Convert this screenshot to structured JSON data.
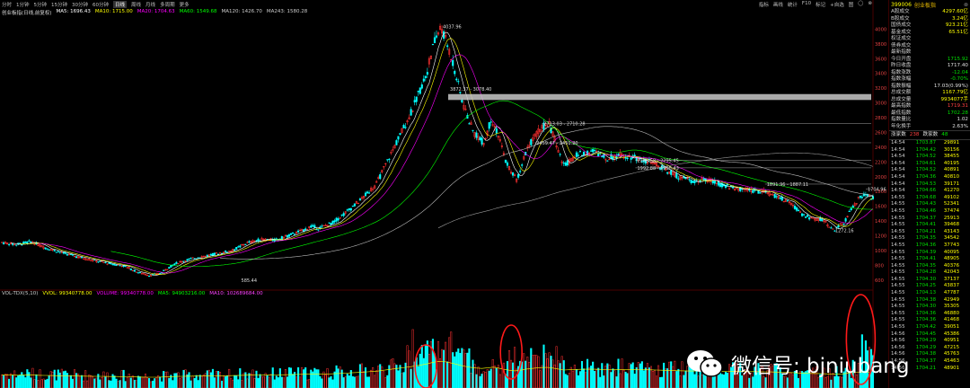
{
  "toolbar": {
    "tabs": [
      "分时",
      "1分钟",
      "5分钟",
      "15分钟",
      "30分钟",
      "60分钟",
      "日线",
      "周线",
      "月线",
      "多周期",
      "更多"
    ],
    "active_tab": "日线",
    "right_items": [
      "指标",
      "画线",
      "统计",
      "F10",
      "标记",
      "+自选",
      "图",
      "◯",
      "⊗"
    ]
  },
  "ma_legend": {
    "title": "创业板指(日线,前复权)",
    "items": [
      {
        "label": "MA5: 1696.43",
        "color": "#ffffff"
      },
      {
        "label": "MA10: 1715.00",
        "color": "#ffff00"
      },
      {
        "label": "MA20: 1704.63",
        "color": "#ff00ff"
      },
      {
        "label": "MA60: 1549.68",
        "color": "#00ff00"
      },
      {
        "label": "MA120: 1426.70",
        "color": "#cccccc"
      },
      {
        "label": "MA243: 1580.28",
        "color": "#cccccc"
      }
    ]
  },
  "vol_legend": {
    "items": [
      {
        "label": "VOL-TDX(5,10)",
        "color": "#cccccc"
      },
      {
        "label": "VVOL: 99340778.00",
        "color": "#ffff00"
      },
      {
        "label": "VOLUME: 99340778.00",
        "color": "#ff00ff"
      },
      {
        "label": "MA5: 94903216.00",
        "color": "#00ff00"
      },
      {
        "label": "MA10: 102689684.00",
        "color": "#ff40ff"
      }
    ]
  },
  "chart_data": {
    "type": "candlestick",
    "title": "创业板指(日线,前复权)",
    "y_axis_labels": [
      4000,
      3800,
      3600,
      3400,
      3200,
      3000,
      2800,
      2600,
      2400,
      2200,
      2000,
      1800,
      1600,
      1400,
      1200,
      1000,
      800,
      600
    ],
    "price_path": [
      [
        0,
        1110
      ],
      [
        4,
        1080
      ],
      [
        8,
        1120
      ],
      [
        12,
        1040
      ],
      [
        16,
        980
      ],
      [
        22,
        900
      ],
      [
        28,
        840
      ],
      [
        34,
        790
      ],
      [
        38,
        700
      ],
      [
        41,
        660
      ],
      [
        44,
        690
      ],
      [
        48,
        820
      ],
      [
        52,
        880
      ],
      [
        56,
        920
      ],
      [
        60,
        960
      ],
      [
        64,
        1000
      ],
      [
        68,
        1100
      ],
      [
        72,
        1150
      ],
      [
        76,
        1140
      ],
      [
        80,
        1210
      ],
      [
        84,
        1280
      ],
      [
        86,
        1330
      ],
      [
        88,
        1300
      ],
      [
        92,
        1380
      ],
      [
        96,
        1530
      ],
      [
        100,
        1700
      ],
      [
        104,
        1900
      ],
      [
        106,
        2100
      ],
      [
        110,
        2500
      ],
      [
        114,
        2900
      ],
      [
        118,
        3400
      ],
      [
        120,
        3800
      ],
      [
        122,
        4037
      ],
      [
        125,
        3600
      ],
      [
        128,
        3000
      ],
      [
        131,
        2600
      ],
      [
        134,
        2450
      ],
      [
        136,
        2800
      ],
      [
        138,
        2550
      ],
      [
        140,
        2200
      ],
      [
        143,
        1950
      ],
      [
        146,
        2400
      ],
      [
        150,
        2680
      ],
      [
        152,
        2710
      ],
      [
        154,
        2450
      ],
      [
        156,
        2150
      ],
      [
        160,
        2300
      ],
      [
        164,
        2350
      ],
      [
        168,
        2250
      ],
      [
        172,
        2300
      ],
      [
        176,
        2260
      ],
      [
        180,
        2200
      ],
      [
        184,
        2100
      ],
      [
        188,
        2000
      ],
      [
        192,
        1940
      ],
      [
        196,
        1960
      ],
      [
        200,
        1891
      ],
      [
        204,
        1840
      ],
      [
        208,
        1820
      ],
      [
        212,
        1790
      ],
      [
        216,
        1720
      ],
      [
        220,
        1600
      ],
      [
        222,
        1500
      ],
      [
        225,
        1430
      ],
      [
        228,
        1420
      ],
      [
        231,
        1272
      ],
      [
        234,
        1380
      ],
      [
        236,
        1560
      ],
      [
        238,
        1700
      ],
      [
        240,
        1760
      ],
      [
        242,
        1704
      ]
    ],
    "annotations": [
      {
        "text": "4037.96",
        "x": 122,
        "y": 4037
      },
      {
        "text": "3872.37 - 3078.40",
        "x": 124,
        "y": 3190
      },
      {
        "text": "2713.03 - 2710.28",
        "x": 150,
        "y": 2720
      },
      {
        "text": "2459.47 - 2451.20",
        "x": 148,
        "y": 2460
      },
      {
        "text": "2288.58 - 2295.45",
        "x": 176,
        "y": 2220
      },
      {
        "text": "1992.88 - 1998.43",
        "x": 176,
        "y": 2120
      },
      {
        "text": "1891.96 - 1887.11",
        "x": 212,
        "y": 1900
      },
      {
        "text": "1704.96",
        "x": 240,
        "y": 1830
      },
      {
        "text": "1272.16",
        "x": 231,
        "y": 1272
      },
      {
        "text": "585.44",
        "x": 66,
        "y": 600
      }
    ],
    "support_band": {
      "from": 3120,
      "to": 3040,
      "x_start": 124
    },
    "volume_red_circles": 4
  },
  "sidebar": {
    "header": {
      "code": "399006",
      "name": "创业板指",
      "close": "⊗"
    },
    "rows": [
      {
        "k": "A股成交",
        "v": "4297.60亿",
        "c": "yellow"
      },
      {
        "k": "B股成交",
        "v": "3.24亿",
        "c": "yellow"
      },
      {
        "k": "国债成交",
        "v": "923.21亿",
        "c": "yellow"
      },
      {
        "k": "基金成交",
        "v": "65.51亿",
        "c": "yellow"
      },
      {
        "k": "权证成交",
        "v": "",
        "c": "yellow"
      },
      {
        "k": "债券成交",
        "v": "",
        "c": "yellow"
      },
      {
        "k": "最新指数",
        "v": "",
        "c": "green"
      },
      {
        "k": "今日开盘",
        "v": "1715.92",
        "c": "green"
      },
      {
        "k": "昨日收盘",
        "v": "1717.40",
        "c": "v"
      },
      {
        "k": "指数涨跌",
        "v": "-12.04",
        "c": "green"
      },
      {
        "k": "指数涨幅",
        "v": "-0.70%",
        "c": "green"
      },
      {
        "k": "指数振幅",
        "v": "17.03(0.99%)",
        "c": "v"
      },
      {
        "k": "总成交额",
        "v": "1167.79亿",
        "c": "yellow"
      },
      {
        "k": "总成交量",
        "v": "9934077手",
        "c": "yellow"
      },
      {
        "k": "最高指数",
        "v": "1719.31",
        "c": "red"
      },
      {
        "k": "最低指数",
        "v": "1702.28",
        "c": "green"
      },
      {
        "k": "指数量比",
        "v": "1.02",
        "c": "v"
      },
      {
        "k": "年化换手",
        "v": "2.63%",
        "c": "v"
      }
    ],
    "updown": {
      "up_label": "涨家数",
      "up": "238",
      "down_label": "跌家数",
      "down": "48"
    },
    "ticks": [
      [
        "14:54",
        "1703.87",
        "29891"
      ],
      [
        "14:54",
        "1704.42",
        "30156"
      ],
      [
        "14:54",
        "1704.52",
        "38455"
      ],
      [
        "14:54",
        "1704.61",
        "40195"
      ],
      [
        "14:54",
        "1704.52",
        "40891"
      ],
      [
        "14:54",
        "1704.36",
        "40810"
      ],
      [
        "14:54",
        "1704.53",
        "39171"
      ],
      [
        "14:54",
        "1704.66",
        "41270"
      ],
      [
        "14:55",
        "1704.68",
        "49102"
      ],
      [
        "14:55",
        "1704.43",
        "52341"
      ],
      [
        "14:55",
        "1704.46",
        "37474"
      ],
      [
        "14:55",
        "1704.37",
        "25913"
      ],
      [
        "14:55",
        "1704.41",
        "39468"
      ],
      [
        "14:55",
        "1704.21",
        "43143"
      ],
      [
        "14:55",
        "1704.35",
        "34542"
      ],
      [
        "14:55",
        "1704.36",
        "37743"
      ],
      [
        "14:55",
        "1704.39",
        "40095"
      ],
      [
        "14:55",
        "1704.41",
        "48905"
      ],
      [
        "14:55",
        "1704.35",
        "40376"
      ],
      [
        "14:55",
        "1704.28",
        "42043"
      ],
      [
        "14:55",
        "1704.30",
        "37137"
      ],
      [
        "14:55",
        "1704.25",
        "43837"
      ],
      [
        "14:55",
        "1704.13",
        "47787"
      ],
      [
        "14:55",
        "1704.38",
        "42949"
      ],
      [
        "14:55",
        "1704.30",
        "35305"
      ],
      [
        "14:55",
        "1704.36",
        "46880"
      ],
      [
        "14:55",
        "1704.36",
        "41468"
      ],
      [
        "14:55",
        "1704.42",
        "39051"
      ],
      [
        "14:56",
        "1704.45",
        "45386"
      ],
      [
        "14:56",
        "1704.29",
        "40951"
      ],
      [
        "14:56",
        "1704.29",
        "47215"
      ],
      [
        "14:56",
        "1704.38",
        "45763"
      ],
      [
        "14:56",
        "1704.37",
        "45463"
      ],
      [
        "14:56",
        "1704.21",
        "48901"
      ]
    ]
  },
  "watermark": {
    "text": "微信号: bjniubang",
    "icon": "wechat-icon"
  },
  "colors": {
    "up": "#ff3030",
    "down": "#00ffff",
    "band": "#c8c8c8",
    "circle": "#ff1a1a"
  }
}
